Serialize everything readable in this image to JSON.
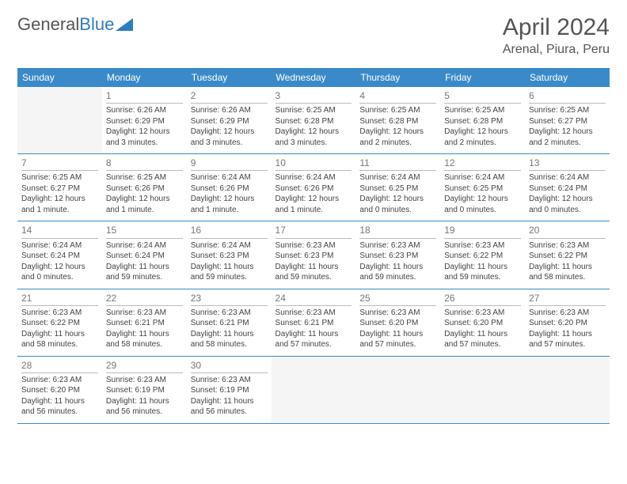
{
  "logo": {
    "text1": "General",
    "text2": "Blue"
  },
  "title": "April 2024",
  "location": "Arenal, Piura, Peru",
  "colors": {
    "header_bg": "#3a8ac9",
    "header_fg": "#ffffff",
    "logo_blue": "#2e7cc0",
    "text": "#444444",
    "border": "#3a8ac9"
  },
  "typography": {
    "title_fontsize": 30,
    "location_fontsize": 16,
    "dayheader_fontsize": 12,
    "cell_fontsize": 10
  },
  "day_headers": [
    "Sunday",
    "Monday",
    "Tuesday",
    "Wednesday",
    "Thursday",
    "Friday",
    "Saturday"
  ],
  "weeks": [
    [
      {
        "empty": true
      },
      {
        "num": "1",
        "sunrise": "Sunrise: 6:26 AM",
        "sunset": "Sunset: 6:29 PM",
        "daylight": "Daylight: 12 hours and 3 minutes."
      },
      {
        "num": "2",
        "sunrise": "Sunrise: 6:26 AM",
        "sunset": "Sunset: 6:29 PM",
        "daylight": "Daylight: 12 hours and 3 minutes."
      },
      {
        "num": "3",
        "sunrise": "Sunrise: 6:25 AM",
        "sunset": "Sunset: 6:28 PM",
        "daylight": "Daylight: 12 hours and 3 minutes."
      },
      {
        "num": "4",
        "sunrise": "Sunrise: 6:25 AM",
        "sunset": "Sunset: 6:28 PM",
        "daylight": "Daylight: 12 hours and 2 minutes."
      },
      {
        "num": "5",
        "sunrise": "Sunrise: 6:25 AM",
        "sunset": "Sunset: 6:28 PM",
        "daylight": "Daylight: 12 hours and 2 minutes."
      },
      {
        "num": "6",
        "sunrise": "Sunrise: 6:25 AM",
        "sunset": "Sunset: 6:27 PM",
        "daylight": "Daylight: 12 hours and 2 minutes."
      }
    ],
    [
      {
        "num": "7",
        "sunrise": "Sunrise: 6:25 AM",
        "sunset": "Sunset: 6:27 PM",
        "daylight": "Daylight: 12 hours and 1 minute."
      },
      {
        "num": "8",
        "sunrise": "Sunrise: 6:25 AM",
        "sunset": "Sunset: 6:26 PM",
        "daylight": "Daylight: 12 hours and 1 minute."
      },
      {
        "num": "9",
        "sunrise": "Sunrise: 6:24 AM",
        "sunset": "Sunset: 6:26 PM",
        "daylight": "Daylight: 12 hours and 1 minute."
      },
      {
        "num": "10",
        "sunrise": "Sunrise: 6:24 AM",
        "sunset": "Sunset: 6:26 PM",
        "daylight": "Daylight: 12 hours and 1 minute."
      },
      {
        "num": "11",
        "sunrise": "Sunrise: 6:24 AM",
        "sunset": "Sunset: 6:25 PM",
        "daylight": "Daylight: 12 hours and 0 minutes."
      },
      {
        "num": "12",
        "sunrise": "Sunrise: 6:24 AM",
        "sunset": "Sunset: 6:25 PM",
        "daylight": "Daylight: 12 hours and 0 minutes."
      },
      {
        "num": "13",
        "sunrise": "Sunrise: 6:24 AM",
        "sunset": "Sunset: 6:24 PM",
        "daylight": "Daylight: 12 hours and 0 minutes."
      }
    ],
    [
      {
        "num": "14",
        "sunrise": "Sunrise: 6:24 AM",
        "sunset": "Sunset: 6:24 PM",
        "daylight": "Daylight: 12 hours and 0 minutes."
      },
      {
        "num": "15",
        "sunrise": "Sunrise: 6:24 AM",
        "sunset": "Sunset: 6:24 PM",
        "daylight": "Daylight: 11 hours and 59 minutes."
      },
      {
        "num": "16",
        "sunrise": "Sunrise: 6:24 AM",
        "sunset": "Sunset: 6:23 PM",
        "daylight": "Daylight: 11 hours and 59 minutes."
      },
      {
        "num": "17",
        "sunrise": "Sunrise: 6:23 AM",
        "sunset": "Sunset: 6:23 PM",
        "daylight": "Daylight: 11 hours and 59 minutes."
      },
      {
        "num": "18",
        "sunrise": "Sunrise: 6:23 AM",
        "sunset": "Sunset: 6:23 PM",
        "daylight": "Daylight: 11 hours and 59 minutes."
      },
      {
        "num": "19",
        "sunrise": "Sunrise: 6:23 AM",
        "sunset": "Sunset: 6:22 PM",
        "daylight": "Daylight: 11 hours and 59 minutes."
      },
      {
        "num": "20",
        "sunrise": "Sunrise: 6:23 AM",
        "sunset": "Sunset: 6:22 PM",
        "daylight": "Daylight: 11 hours and 58 minutes."
      }
    ],
    [
      {
        "num": "21",
        "sunrise": "Sunrise: 6:23 AM",
        "sunset": "Sunset: 6:22 PM",
        "daylight": "Daylight: 11 hours and 58 minutes."
      },
      {
        "num": "22",
        "sunrise": "Sunrise: 6:23 AM",
        "sunset": "Sunset: 6:21 PM",
        "daylight": "Daylight: 11 hours and 58 minutes."
      },
      {
        "num": "23",
        "sunrise": "Sunrise: 6:23 AM",
        "sunset": "Sunset: 6:21 PM",
        "daylight": "Daylight: 11 hours and 58 minutes."
      },
      {
        "num": "24",
        "sunrise": "Sunrise: 6:23 AM",
        "sunset": "Sunset: 6:21 PM",
        "daylight": "Daylight: 11 hours and 57 minutes."
      },
      {
        "num": "25",
        "sunrise": "Sunrise: 6:23 AM",
        "sunset": "Sunset: 6:20 PM",
        "daylight": "Daylight: 11 hours and 57 minutes."
      },
      {
        "num": "26",
        "sunrise": "Sunrise: 6:23 AM",
        "sunset": "Sunset: 6:20 PM",
        "daylight": "Daylight: 11 hours and 57 minutes."
      },
      {
        "num": "27",
        "sunrise": "Sunrise: 6:23 AM",
        "sunset": "Sunset: 6:20 PM",
        "daylight": "Daylight: 11 hours and 57 minutes."
      }
    ],
    [
      {
        "num": "28",
        "sunrise": "Sunrise: 6:23 AM",
        "sunset": "Sunset: 6:20 PM",
        "daylight": "Daylight: 11 hours and 56 minutes."
      },
      {
        "num": "29",
        "sunrise": "Sunrise: 6:23 AM",
        "sunset": "Sunset: 6:19 PM",
        "daylight": "Daylight: 11 hours and 56 minutes."
      },
      {
        "num": "30",
        "sunrise": "Sunrise: 6:23 AM",
        "sunset": "Sunset: 6:19 PM",
        "daylight": "Daylight: 11 hours and 56 minutes."
      },
      {
        "empty": true
      },
      {
        "empty": true
      },
      {
        "empty": true
      },
      {
        "empty": true
      }
    ]
  ]
}
